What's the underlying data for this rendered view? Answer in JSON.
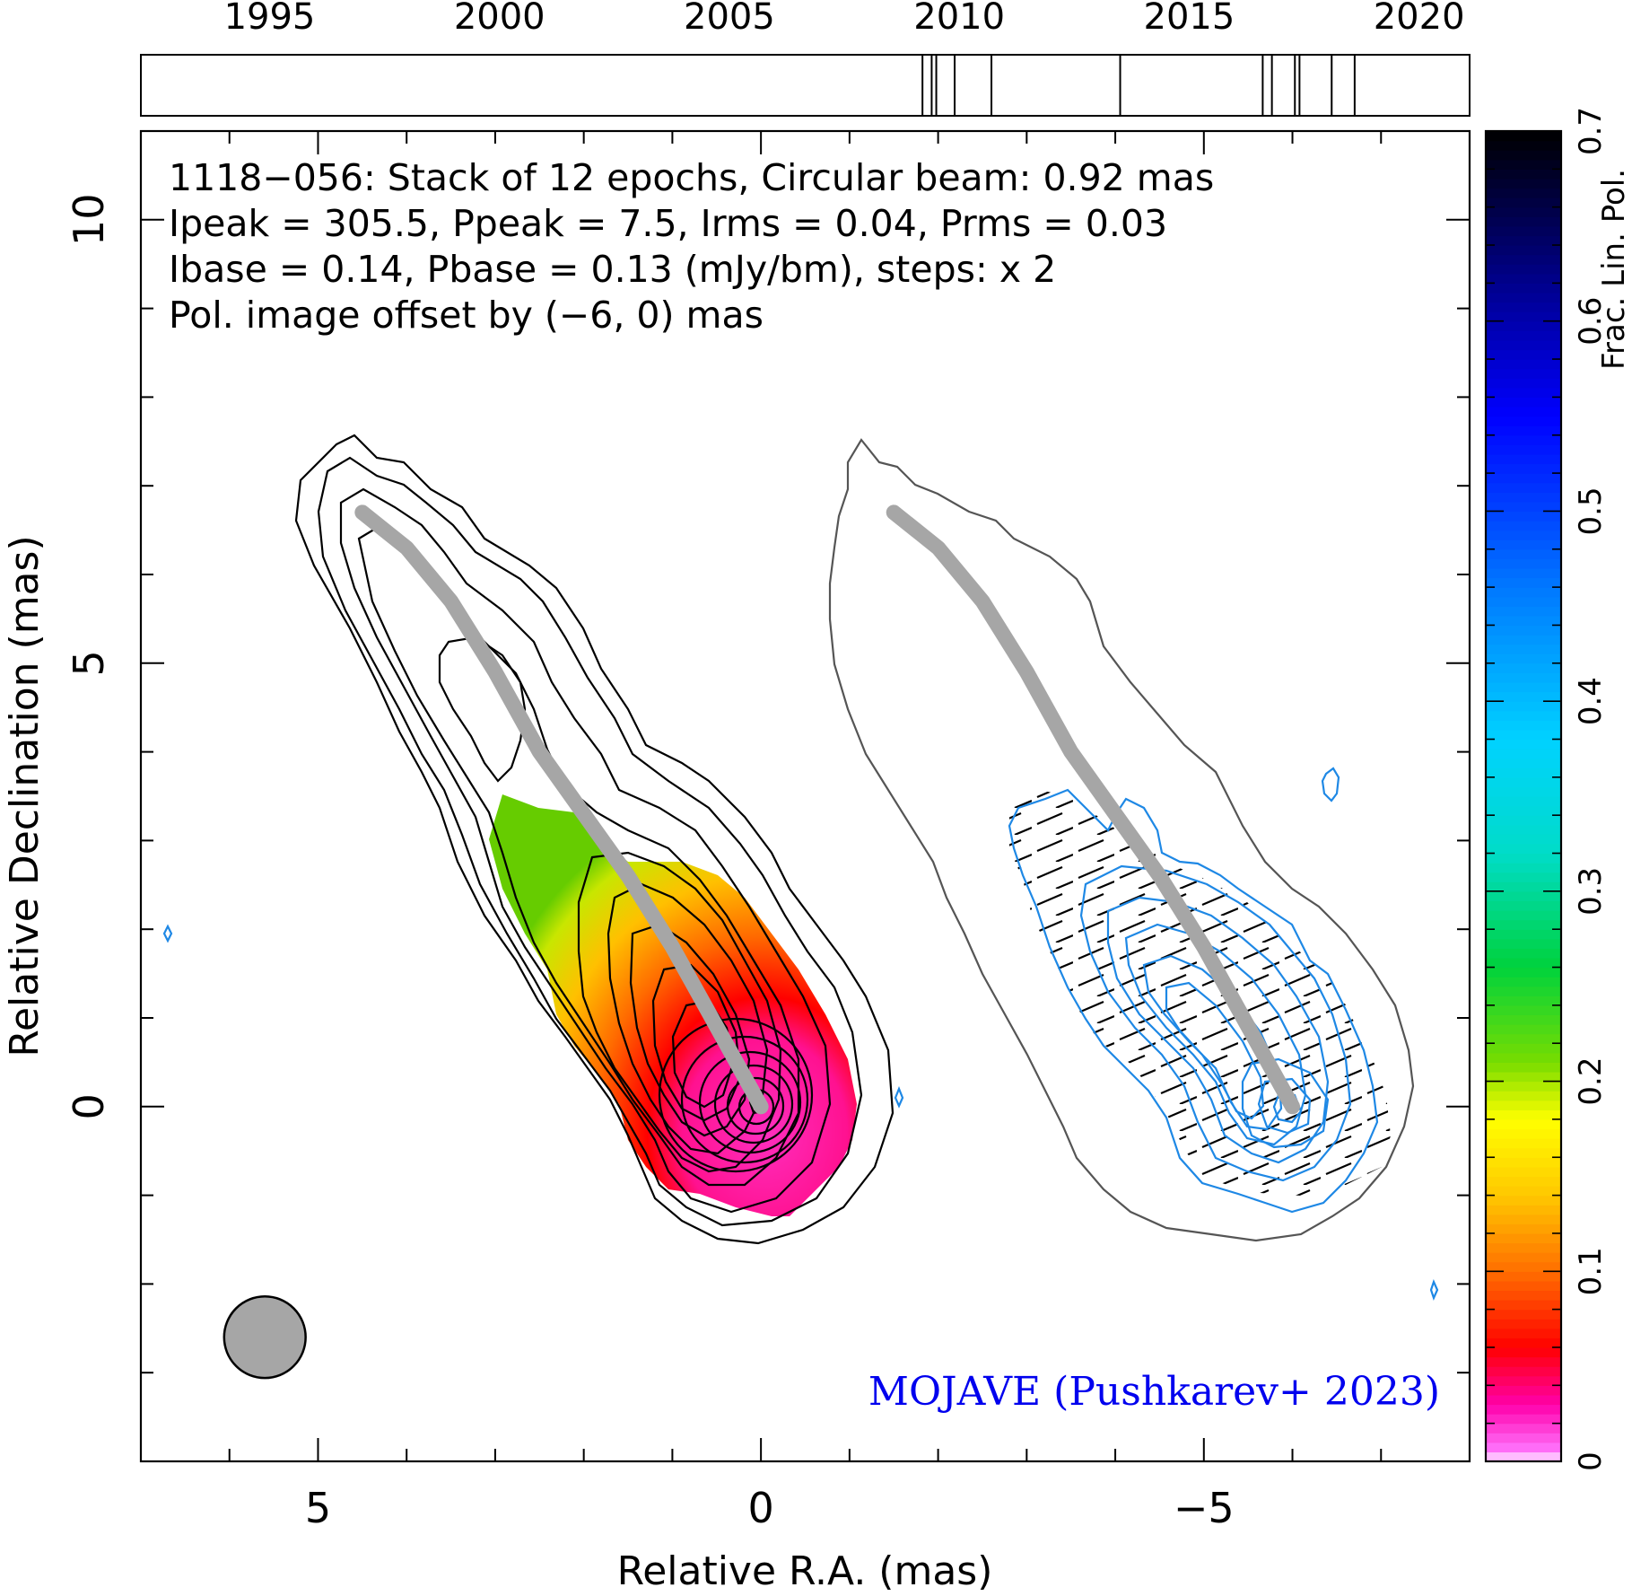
{
  "chart_data": {
    "type": "contour",
    "source": "1118-056",
    "annotations": [
      "1118−056: Stack of 12 epochs, Circular beam: 0.92 mas",
      "Ipeak = 305.5, Ppeak = 7.5, Irms = 0.04, Prms = 0.03",
      "Ibase = 0.14, Pbase = 0.13 (mJy/bm), steps: x 2"
    ],
    "pol_offset_note": "Pol. image offset by (−6, 0) mas",
    "credit": "MOJAVE (Pushkarev+ 2023)",
    "xlabel": "Relative R.A. (mas)",
    "ylabel": "Relative Declination (mas)",
    "xlim": [
      7,
      -8
    ],
    "ylim": [
      -4,
      11
    ],
    "x_ticks": [
      "5",
      "0",
      "−5"
    ],
    "x_tick_values": [
      5,
      0,
      -5
    ],
    "y_ticks": [
      "0",
      "5",
      "10"
    ],
    "y_tick_values": [
      0,
      5,
      10
    ],
    "timeline": {
      "year_labels": [
        "1995",
        "2000",
        "2005",
        "2010",
        "2015",
        "2020"
      ],
      "year_values": [
        1995,
        2000,
        2005,
        2010,
        2015,
        2020
      ],
      "epochs": [
        2009.2,
        2009.4,
        2009.5,
        2009.9,
        2010.7,
        2013.5,
        2016.6,
        2016.8,
        2017.3,
        2017.4,
        2018.1,
        2018.6
      ]
    },
    "colorbar": {
      "label": "Frac. Lin. Pol.",
      "range": [
        0,
        0.7
      ],
      "tick_labels": [
        "0",
        "0.1",
        "0.2",
        "0.3",
        "0.4",
        "0.5",
        "0.6",
        "0.7"
      ],
      "tick_values": [
        0,
        0.1,
        0.2,
        0.3,
        0.4,
        0.5,
        0.6,
        0.7
      ]
    },
    "ridge_line": [
      [
        4.5,
        6.7
      ],
      [
        4.0,
        6.3
      ],
      [
        3.5,
        5.7
      ],
      [
        3.0,
        4.9
      ],
      [
        2.5,
        4.0
      ],
      [
        2.0,
        3.3
      ],
      [
        1.5,
        2.6
      ],
      [
        1.0,
        1.8
      ],
      [
        0.5,
        0.9
      ],
      [
        0,
        0
      ]
    ],
    "beam": {
      "diameter_mas": 0.92,
      "center": [
        5.6,
        -2.6
      ]
    },
    "pol_offset_mas": [
      -6,
      0
    ],
    "colors": {
      "stokes_i_contours": "#000000",
      "pol_contours": "#1e88e5",
      "ridge": "#a6a6a6",
      "offset_note": "#1e88e5",
      "credit": "#0000ee",
      "beam_fill": "#a6a6a6"
    }
  }
}
